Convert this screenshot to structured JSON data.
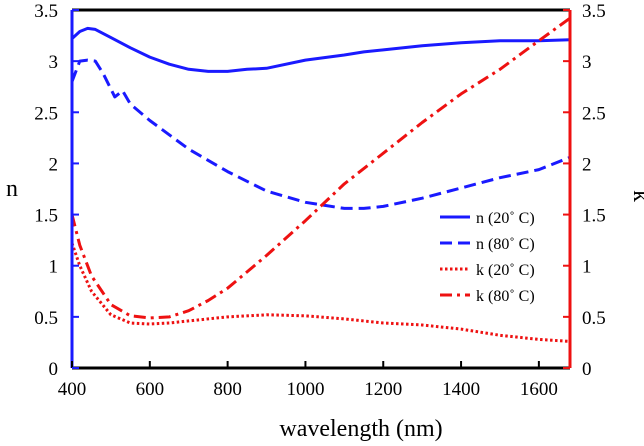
{
  "chart_data": {
    "type": "line",
    "title": "",
    "xlabel": "wavelength (nm)",
    "ylabel_left": "n",
    "ylabel_right": "k",
    "xlim": [
      400,
      1680
    ],
    "ylim_left": [
      0,
      3.5
    ],
    "ylim_right": [
      0,
      3.5
    ],
    "xticks": [
      400,
      600,
      800,
      1000,
      1200,
      1400,
      1600
    ],
    "xtick_labels": [
      "400",
      "600",
      "800",
      "1000",
      "1200",
      "1400",
      "1600"
    ],
    "yticks_left": [
      0,
      0.5,
      1,
      1.5,
      2,
      2.5,
      3,
      3.5
    ],
    "ytick_labels_left": [
      "0",
      "0.5",
      "1",
      "1.5",
      "2",
      "2.5",
      "3",
      "3.5"
    ],
    "yticks_right": [
      0,
      0.5,
      1,
      1.5,
      2,
      2.5,
      3,
      3.5
    ],
    "ytick_labels_right": [
      "0",
      "0.5",
      "1",
      "1.5",
      "2",
      "2.5",
      "3",
      "3.5"
    ],
    "grid": false,
    "legend_position": "middle-right",
    "colors": {
      "left_axis": "#1a1aff",
      "right_axis": "#ee1111",
      "frame": "#000000"
    },
    "series": [
      {
        "name": "n (20˚ C)",
        "axis": "left",
        "color": "#1a1aff",
        "style": "solid",
        "x": [
          400,
          420,
          440,
          460,
          500,
          550,
          600,
          650,
          700,
          750,
          800,
          850,
          900,
          1000,
          1100,
          1150,
          1200,
          1300,
          1400,
          1500,
          1600,
          1680
        ],
        "values": [
          3.22,
          3.29,
          3.32,
          3.31,
          3.23,
          3.13,
          3.04,
          2.97,
          2.92,
          2.9,
          2.9,
          2.92,
          2.93,
          3.01,
          3.06,
          3.09,
          3.11,
          3.15,
          3.18,
          3.2,
          3.2,
          3.21
        ]
      },
      {
        "name": "n (80˚ C)",
        "axis": "left",
        "color": "#1a1aff",
        "style": "dashed",
        "x": [
          400,
          420,
          440,
          460,
          480,
          510,
          530,
          550,
          600,
          700,
          800,
          900,
          1000,
          1050,
          1100,
          1150,
          1200,
          1300,
          1400,
          1500,
          1600,
          1680
        ],
        "values": [
          2.8,
          3.0,
          3.01,
          3.0,
          2.88,
          2.65,
          2.71,
          2.58,
          2.42,
          2.14,
          1.92,
          1.73,
          1.62,
          1.59,
          1.56,
          1.56,
          1.58,
          1.66,
          1.76,
          1.86,
          1.94,
          2.06
        ]
      },
      {
        "name": "k (20˚ C)",
        "axis": "right",
        "color": "#ee1111",
        "style": "dotted",
        "x": [
          400,
          420,
          450,
          500,
          550,
          600,
          650,
          700,
          750,
          800,
          900,
          1000,
          1100,
          1200,
          1300,
          1400,
          1500,
          1600,
          1680
        ],
        "values": [
          1.22,
          1.0,
          0.75,
          0.52,
          0.44,
          0.43,
          0.44,
          0.46,
          0.48,
          0.5,
          0.52,
          0.51,
          0.48,
          0.44,
          0.42,
          0.38,
          0.32,
          0.28,
          0.26
        ]
      },
      {
        "name": "k (80˚ C)",
        "axis": "right",
        "color": "#ee1111",
        "style": "dashdot",
        "x": [
          400,
          420,
          450,
          500,
          550,
          600,
          650,
          700,
          750,
          800,
          900,
          1000,
          1100,
          1200,
          1300,
          1400,
          1500,
          1600,
          1680
        ],
        "values": [
          1.5,
          1.2,
          0.9,
          0.62,
          0.51,
          0.49,
          0.5,
          0.56,
          0.66,
          0.78,
          1.1,
          1.44,
          1.8,
          2.1,
          2.4,
          2.68,
          2.92,
          3.2,
          3.42
        ]
      }
    ]
  }
}
